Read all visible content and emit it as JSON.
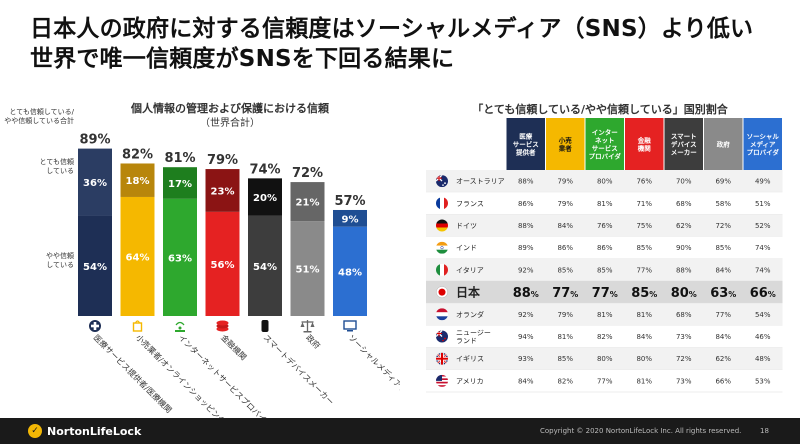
{
  "title": {
    "line1": "日本人の政府に対する信頼度はソーシャルメディア（SNS）より低い",
    "line2": "世界で唯一信頼度がSNSを下回る結果に"
  },
  "left_chart": {
    "title": "個人情報の管理および保護における信頼",
    "subtitle": "（世界合計）",
    "row_labels": {
      "total": "とても信頼している/\nやや信頼している合計",
      "very": "とても信頼\nしている",
      "somewhat": "やや信頼\nしている"
    }
  },
  "right_chart": {
    "title": "「とても信頼している/やや信頼している」国別割合"
  },
  "chart_data": [
    {
      "type": "bar",
      "categories": [
        "医療サービス提供者/医療機関",
        "小売業者/オンラインショッピングサイト",
        "インターネットサービスプロバイダ",
        "金融機関",
        "スマートデバイスメーカー",
        "政府",
        "ソーシャルメディアプロバイダ"
      ],
      "totals": [
        "89%",
        "82%",
        "81%",
        "79%",
        "74%",
        "72%",
        "57%"
      ],
      "series": [
        {
          "name": "とても信頼している",
          "values": [
            36,
            18,
            17,
            23,
            20,
            21,
            9
          ]
        },
        {
          "name": "やや信頼している",
          "values": [
            54,
            64,
            63,
            56,
            54,
            51,
            48
          ]
        }
      ],
      "colors": {
        "very": [
          "#2b3d63",
          "#b8860b",
          "#1e7e1e",
          "#8b1414",
          "#111111",
          "#666666",
          "#1f4e93"
        ],
        "somewhat": [
          "#1e2f55",
          "#f5b800",
          "#2ea82e",
          "#e52222",
          "#3d3d3d",
          "#8a8a8a",
          "#2c6fd1"
        ]
      },
      "icons": [
        "medical-cross-icon",
        "shopping-bag-icon",
        "wireless-signal-icon",
        "coins-icon",
        "smart-speaker-icon",
        "scales-icon",
        "monitor-icon"
      ]
    },
    {
      "type": "table",
      "columns": [
        {
          "label": "医療\nサービス\n提供者",
          "color": "#1e2f55"
        },
        {
          "label": "小売\n業者",
          "color": "#f5b800"
        },
        {
          "label": "インター\nネット\nサービス\nプロバイダ",
          "color": "#2ea82e"
        },
        {
          "label": "金融\n機関",
          "color": "#e52222"
        },
        {
          "label": "スマート\nデバイス\nメーカー",
          "color": "#3d3d3d"
        },
        {
          "label": "政府",
          "color": "#8a8a8a"
        },
        {
          "label": "ソーシャル\nメディア\nプロバイダ",
          "color": "#2c6fd1"
        }
      ],
      "rows": [
        {
          "country": "オーストラリア",
          "flag": "australia-flag-icon",
          "values": [
            "88%",
            "79%",
            "80%",
            "76%",
            "70%",
            "69%",
            "49%"
          ]
        },
        {
          "country": "フランス",
          "flag": "france-flag-icon",
          "values": [
            "86%",
            "79%",
            "81%",
            "71%",
            "68%",
            "58%",
            "51%"
          ]
        },
        {
          "country": "ドイツ",
          "flag": "germany-flag-icon",
          "values": [
            "88%",
            "84%",
            "76%",
            "75%",
            "62%",
            "72%",
            "52%"
          ]
        },
        {
          "country": "インド",
          "flag": "india-flag-icon",
          "values": [
            "89%",
            "86%",
            "86%",
            "85%",
            "90%",
            "85%",
            "74%"
          ]
        },
        {
          "country": "イタリア",
          "flag": "italy-flag-icon",
          "values": [
            "92%",
            "85%",
            "85%",
            "77%",
            "88%",
            "84%",
            "74%"
          ]
        },
        {
          "country": "日本",
          "flag": "japan-flag-icon",
          "values": [
            "88%",
            "77%",
            "77%",
            "85%",
            "80%",
            "63%",
            "66%"
          ],
          "highlight": true
        },
        {
          "country": "オランダ",
          "flag": "netherlands-flag-icon",
          "values": [
            "92%",
            "79%",
            "81%",
            "81%",
            "68%",
            "77%",
            "54%"
          ]
        },
        {
          "country": "ニュージー\nランド",
          "flag": "new-zealand-flag-icon",
          "values": [
            "94%",
            "81%",
            "82%",
            "84%",
            "73%",
            "84%",
            "46%"
          ]
        },
        {
          "country": "イギリス",
          "flag": "uk-flag-icon",
          "values": [
            "93%",
            "85%",
            "80%",
            "80%",
            "72%",
            "62%",
            "48%"
          ]
        },
        {
          "country": "アメリカ",
          "flag": "usa-flag-icon",
          "values": [
            "84%",
            "82%",
            "77%",
            "81%",
            "73%",
            "66%",
            "53%"
          ]
        }
      ]
    }
  ],
  "footer": {
    "logo": "NortonLifeLock",
    "copyright": "Copyright © 2020 NortonLifeLock Inc. All rights reserved.",
    "page": "18"
  }
}
